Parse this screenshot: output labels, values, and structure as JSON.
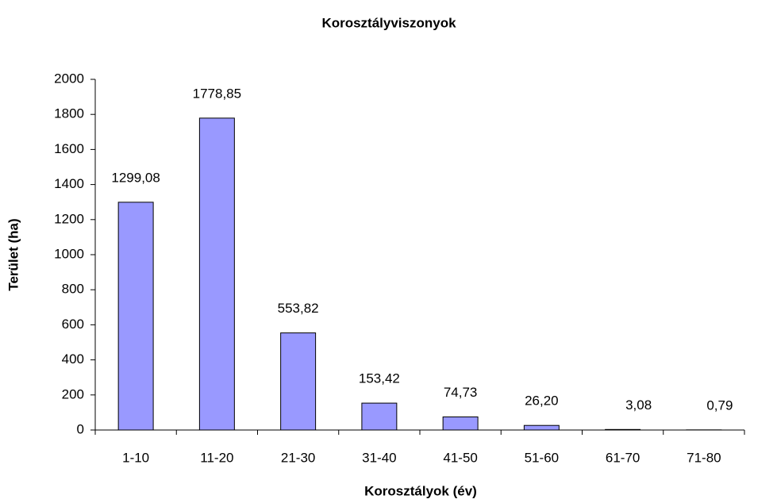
{
  "chart_data": {
    "type": "bar",
    "title": "Korosztályviszonyok",
    "x_label": "Korosztályok (év)",
    "y_label": "Terület (ha)",
    "categories": [
      "1-10",
      "11-20",
      "21-30",
      "31-40",
      "41-50",
      "51-60",
      "61-70",
      "71-80"
    ],
    "values": [
      1299.08,
      1778.85,
      553.82,
      153.42,
      74.73,
      26.2,
      3.08,
      0.79
    ],
    "value_labels": [
      "1299,08",
      "1778,85",
      "553,82",
      "153,42",
      "74,73",
      "26,20",
      "3,08",
      "0,79"
    ],
    "color": "#9999ff",
    "ylim": [
      0,
      2000
    ],
    "yticks": [
      0,
      200,
      400,
      600,
      800,
      1000,
      1200,
      1400,
      1600,
      1800,
      2000
    ],
    "grid": false
  }
}
